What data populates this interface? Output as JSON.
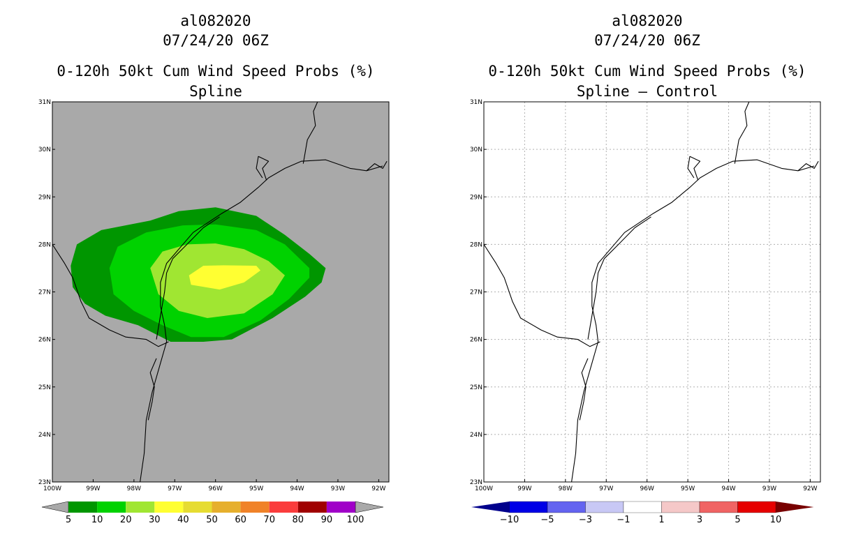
{
  "colors": {
    "map_background": "#a9a9a9",
    "coastline": "#000000",
    "grid_lines": "#b0b0b0"
  },
  "chart_data": [
    {
      "type": "heatmap",
      "storm_id": "al082020",
      "datetime": "07/24/20 06Z",
      "title": "0-120h 50kt Cum Wind Speed Probs (%)",
      "subtitle": "Spline",
      "units": "%",
      "xlim": [
        -100,
        -91.75
      ],
      "ylim": [
        23,
        31
      ],
      "x_ticks": [
        {
          "value": -100,
          "label": "100W"
        },
        {
          "value": -99,
          "label": "99W"
        },
        {
          "value": -98,
          "label": "98W"
        },
        {
          "value": -97,
          "label": "97W"
        },
        {
          "value": -96,
          "label": "96W"
        },
        {
          "value": -95,
          "label": "95W"
        },
        {
          "value": -94,
          "label": "94W"
        },
        {
          "value": -93,
          "label": "93W"
        },
        {
          "value": -92,
          "label": "92W"
        }
      ],
      "y_ticks": [
        {
          "value": 23,
          "label": "23N"
        },
        {
          "value": 24,
          "label": "24N"
        },
        {
          "value": 25,
          "label": "25N"
        },
        {
          "value": 26,
          "label": "26N"
        },
        {
          "value": 27,
          "label": "27N"
        },
        {
          "value": 28,
          "label": "28N"
        },
        {
          "value": 29,
          "label": "29N"
        },
        {
          "value": 30,
          "label": "30N"
        },
        {
          "value": 31,
          "label": "31N"
        }
      ],
      "grid": false,
      "colorbar": {
        "labels": [
          "5",
          "10",
          "20",
          "30",
          "40",
          "50",
          "60",
          "70",
          "80",
          "90",
          "100"
        ],
        "colors": [
          "#009600",
          "#00d200",
          "#a0e632",
          "#ffff32",
          "#e6dc32",
          "#e6af2d",
          "#f08228",
          "#fa3c3c",
          "#a00000",
          "#a000c8"
        ],
        "extend_color": "#a9a9a9"
      },
      "contours": [
        {
          "level": "5-10",
          "color": "#009600",
          "outline": [
            [
              -99.4,
              28.0
            ],
            [
              -98.8,
              28.3
            ],
            [
              -97.6,
              28.5
            ],
            [
              -96.9,
              28.7
            ],
            [
              -96.0,
              28.78
            ],
            [
              -95.0,
              28.6
            ],
            [
              -94.3,
              28.2
            ],
            [
              -93.7,
              27.8
            ],
            [
              -93.3,
              27.5
            ],
            [
              -93.4,
              27.2
            ],
            [
              -93.8,
              26.9
            ],
            [
              -94.6,
              26.45
            ],
            [
              -95.6,
              26.0
            ],
            [
              -96.3,
              25.95
            ],
            [
              -97.1,
              25.95
            ],
            [
              -97.9,
              26.3
            ],
            [
              -98.7,
              26.5
            ],
            [
              -99.2,
              26.75
            ],
            [
              -99.5,
              27.1
            ],
            [
              -99.55,
              27.55
            ]
          ]
        },
        {
          "level": "10-20",
          "color": "#00d200",
          "outline": [
            [
              -98.6,
              27.5
            ],
            [
              -98.4,
              27.95
            ],
            [
              -97.7,
              28.25
            ],
            [
              -96.8,
              28.4
            ],
            [
              -96.0,
              28.42
            ],
            [
              -95.0,
              28.3
            ],
            [
              -94.3,
              28.0
            ],
            [
              -93.7,
              27.5
            ],
            [
              -93.7,
              27.3
            ],
            [
              -94.2,
              26.85
            ],
            [
              -94.9,
              26.4
            ],
            [
              -95.8,
              26.05
            ],
            [
              -96.6,
              26.05
            ],
            [
              -97.3,
              26.3
            ],
            [
              -98.0,
              26.6
            ],
            [
              -98.5,
              26.95
            ]
          ]
        },
        {
          "level": "20-30",
          "color": "#a0e632",
          "outline": [
            [
              -97.6,
              27.5
            ],
            [
              -97.3,
              27.85
            ],
            [
              -96.7,
              28.0
            ],
            [
              -96.0,
              28.02
            ],
            [
              -95.3,
              27.9
            ],
            [
              -94.7,
              27.65
            ],
            [
              -94.3,
              27.35
            ],
            [
              -94.6,
              26.95
            ],
            [
              -95.3,
              26.55
            ],
            [
              -96.2,
              26.45
            ],
            [
              -96.9,
              26.6
            ],
            [
              -97.4,
              26.95
            ]
          ]
        },
        {
          "level": "30-40",
          "color": "#ffff32",
          "outline": [
            [
              -96.3,
              27.55
            ],
            [
              -95.8,
              27.56
            ],
            [
              -95.0,
              27.55
            ],
            [
              -94.9,
              27.45
            ],
            [
              -95.3,
              27.2
            ],
            [
              -95.9,
              27.05
            ],
            [
              -96.6,
              27.15
            ],
            [
              -96.65,
              27.35
            ]
          ]
        }
      ]
    },
    {
      "type": "heatmap",
      "storm_id": "al082020",
      "datetime": "07/24/20 06Z",
      "title": "0-120h 50kt Cum Wind Speed Probs (%)",
      "subtitle": "Spline – Control",
      "units": "%",
      "xlim": [
        -100,
        -91.75
      ],
      "ylim": [
        23,
        31
      ],
      "x_ticks": [
        {
          "value": -100,
          "label": "100W"
        },
        {
          "value": -99,
          "label": "99W"
        },
        {
          "value": -98,
          "label": "98W"
        },
        {
          "value": -97,
          "label": "97W"
        },
        {
          "value": -96,
          "label": "96W"
        },
        {
          "value": -95,
          "label": "95W"
        },
        {
          "value": -94,
          "label": "94W"
        },
        {
          "value": -93,
          "label": "93W"
        },
        {
          "value": -92,
          "label": "92W"
        }
      ],
      "y_ticks": [
        {
          "value": 23,
          "label": "23N"
        },
        {
          "value": 24,
          "label": "24N"
        },
        {
          "value": 25,
          "label": "25N"
        },
        {
          "value": 26,
          "label": "26N"
        },
        {
          "value": 27,
          "label": "27N"
        },
        {
          "value": 28,
          "label": "28N"
        },
        {
          "value": 29,
          "label": "29N"
        },
        {
          "value": 30,
          "label": "30N"
        },
        {
          "value": 31,
          "label": "31N"
        }
      ],
      "grid": true,
      "colorbar": {
        "labels": [
          "−10",
          "−5",
          "−3",
          "−1",
          "1",
          "3",
          "5",
          "10"
        ],
        "colors": [
          "#0000e6",
          "#6464f0",
          "#c8c8f5",
          "#ffffff",
          "#f5c8c8",
          "#f06464",
          "#e60000"
        ],
        "extend_low_color": "#00008c",
        "extend_high_color": "#780000"
      },
      "contours": []
    }
  ],
  "coastline": {
    "texas_coast": [
      [
        -97.85,
        23.0
      ],
      [
        -97.75,
        23.6
      ],
      [
        -97.7,
        24.3
      ],
      [
        -97.55,
        24.9
      ],
      [
        -97.35,
        25.5
      ],
      [
        -97.2,
        25.95
      ],
      [
        -97.25,
        26.3
      ],
      [
        -97.35,
        26.7
      ],
      [
        -97.35,
        27.2
      ],
      [
        -97.2,
        27.6
      ],
      [
        -96.9,
        27.9
      ],
      [
        -96.55,
        28.25
      ],
      [
        -96.2,
        28.45
      ],
      [
        -95.85,
        28.65
      ],
      [
        -95.4,
        28.88
      ],
      [
        -94.95,
        29.2
      ],
      [
        -94.7,
        29.4
      ],
      [
        -94.3,
        29.6
      ],
      [
        -93.9,
        29.75
      ],
      [
        -93.3,
        29.78
      ],
      [
        -92.7,
        29.6
      ],
      [
        -92.3,
        29.55
      ],
      [
        -91.9,
        29.65
      ]
    ],
    "barrier_island": [
      [
        -97.45,
        26.0
      ],
      [
        -97.35,
        26.5
      ],
      [
        -97.25,
        27.0
      ],
      [
        -97.2,
        27.4
      ],
      [
        -97.05,
        27.7
      ],
      [
        -96.7,
        28.0
      ],
      [
        -96.3,
        28.35
      ],
      [
        -95.9,
        28.58
      ]
    ],
    "laguna_madre_west": [
      [
        -97.65,
        24.3
      ],
      [
        -97.55,
        24.7
      ],
      [
        -97.5,
        25.0
      ],
      [
        -97.6,
        25.3
      ],
      [
        -97.45,
        25.6
      ]
    ],
    "rio_grande": [
      [
        -97.15,
        25.95
      ],
      [
        -97.4,
        25.85
      ],
      [
        -97.7,
        26.0
      ],
      [
        -98.2,
        26.05
      ],
      [
        -98.6,
        26.2
      ],
      [
        -99.1,
        26.45
      ],
      [
        -99.3,
        26.8
      ],
      [
        -99.5,
        27.3
      ],
      [
        -99.7,
        27.6
      ],
      [
        -100.0,
        28.0
      ]
    ],
    "sabine_river": [
      [
        -93.85,
        29.7
      ],
      [
        -93.75,
        30.2
      ],
      [
        -93.55,
        30.5
      ],
      [
        -93.6,
        30.8
      ],
      [
        -93.5,
        31.0
      ]
    ],
    "galveston_bay": [
      [
        -94.75,
        29.35
      ],
      [
        -94.85,
        29.6
      ],
      [
        -94.7,
        29.75
      ],
      [
        -94.95,
        29.85
      ],
      [
        -95.0,
        29.6
      ],
      [
        -94.85,
        29.4
      ]
    ],
    "louisiana_bay": [
      [
        -92.3,
        29.55
      ],
      [
        -92.1,
        29.7
      ],
      [
        -91.9,
        29.6
      ],
      [
        -91.8,
        29.75
      ]
    ]
  }
}
